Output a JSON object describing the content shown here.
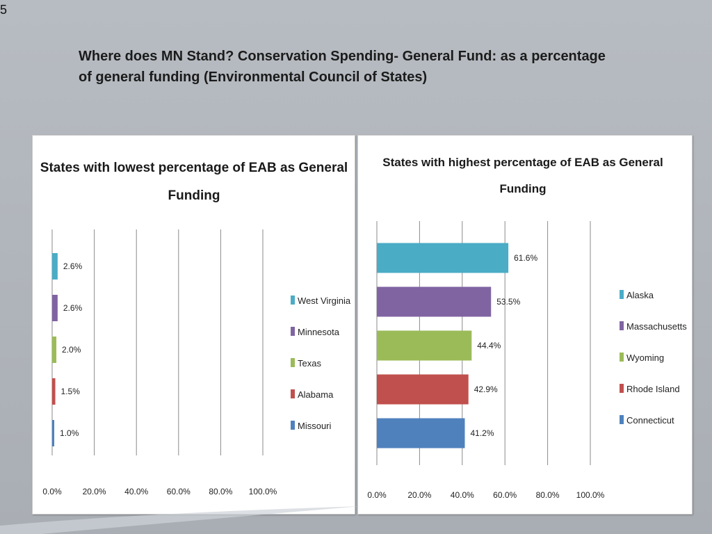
{
  "slide": {
    "number": "5",
    "title": "Where does MN Stand? Conservation Spending- General Fund: as a percentage of general funding (Environmental Council of States)"
  },
  "chart_data": [
    {
      "type": "bar",
      "orientation": "horizontal",
      "title_lines": [
        "States with lowest percentage of EAB as General",
        "Funding"
      ],
      "categories": [
        "West Virginia",
        "Minnesota",
        "Texas",
        "Alabama",
        "Missouri"
      ],
      "values": [
        2.6,
        2.6,
        2.0,
        1.5,
        1.0
      ],
      "value_labels": [
        "2.6%",
        "2.6%",
        "2.0%",
        "1.5%",
        "1.0%"
      ],
      "colors": [
        "#4bacc6",
        "#8064a2",
        "#9bbb59",
        "#c0504d",
        "#4f81bd"
      ],
      "xlim": [
        0,
        100
      ],
      "ticks": [
        "0.0%",
        "20.0%",
        "40.0%",
        "60.0%",
        "80.0%",
        "100.0%"
      ],
      "grid": true,
      "legend": "right"
    },
    {
      "type": "bar",
      "orientation": "horizontal",
      "title_lines": [
        "States with highest percentage of EAB as General",
        "Funding"
      ],
      "categories": [
        "Alaska",
        "Massachusetts",
        "Wyoming",
        "Rhode Island",
        "Connecticut"
      ],
      "values": [
        61.6,
        53.5,
        44.4,
        42.9,
        41.2
      ],
      "value_labels": [
        "61.6%",
        "53.5%",
        "44.4%",
        "42.9%",
        "41.2%"
      ],
      "colors": [
        "#4bacc6",
        "#8064a2",
        "#9bbb59",
        "#c0504d",
        "#4f81bd"
      ],
      "xlim": [
        0,
        100
      ],
      "ticks": [
        "0.0%",
        "20.0%",
        "40.0%",
        "60.0%",
        "80.0%",
        "100.0%"
      ],
      "grid": true,
      "legend": "right"
    }
  ]
}
